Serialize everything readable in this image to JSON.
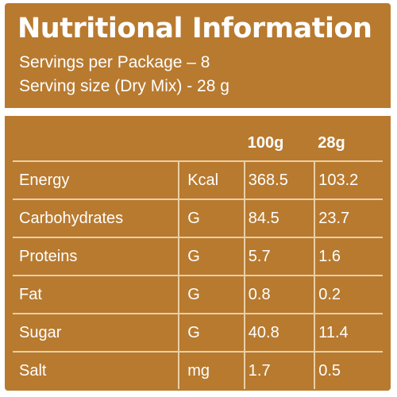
{
  "header": {
    "title": "Nutritional Information",
    "servings": "Servings per Package – 8",
    "serving_size": "Serving size (Dry Mix) - 28 g"
  },
  "table": {
    "headers": [
      "",
      "",
      "100g",
      "28g"
    ],
    "rows": [
      {
        "name": "Energy",
        "unit": "Kcal",
        "per100g": "368.5",
        "per28g": "103.2"
      },
      {
        "name": "Carbohydrates",
        "unit": "G",
        "per100g": "84.5",
        "per28g": "23.7"
      },
      {
        "name": "Proteins",
        "unit": "G",
        "per100g": "5.7",
        "per28g": "1.6"
      },
      {
        "name": "Fat",
        "unit": "G",
        "per100g": "0.8",
        "per28g": "0.2"
      },
      {
        "name": "Sugar",
        "unit": "G",
        "per100g": "40.8",
        "per28g": "11.4"
      },
      {
        "name": "Salt",
        "unit": "mg",
        "per100g": "1.7",
        "per28g": "0.5"
      }
    ]
  },
  "colors": {
    "background": "#b87a2f",
    "text": "#ffffff",
    "grid": "#e9cfa6"
  }
}
